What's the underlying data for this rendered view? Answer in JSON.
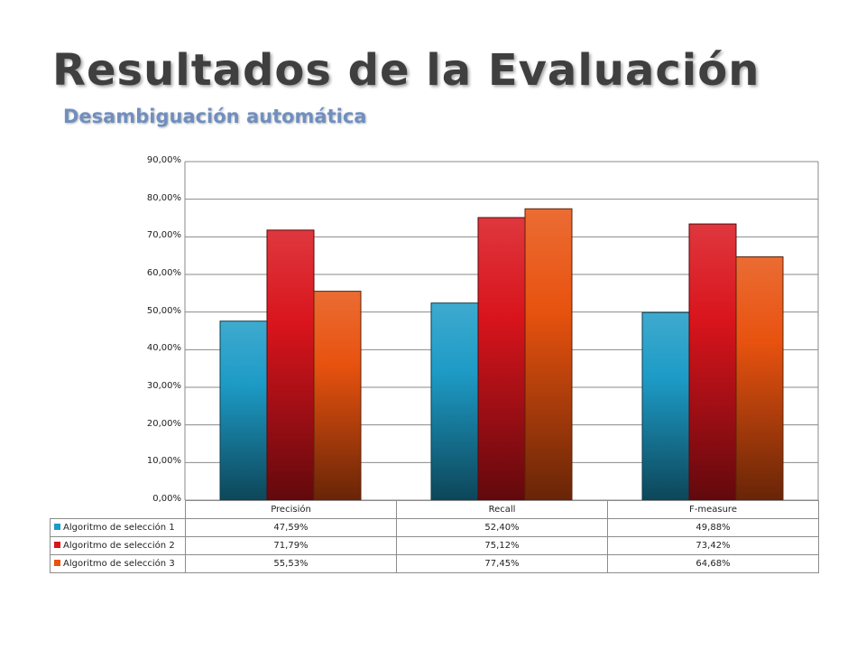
{
  "slide": {
    "title": "Resultados de la Evaluación",
    "subtitle": "Desambiguación automática"
  },
  "chart_data": {
    "type": "bar",
    "categories": [
      "Precisión",
      "Recall",
      "F-measure"
    ],
    "series": [
      {
        "name": "Algoritmo de selección 1",
        "values": [
          47.59,
          52.4,
          49.88
        ],
        "labels": [
          "47,59%",
          "52,40%",
          "49,88%"
        ],
        "color": "#1d9bc6"
      },
      {
        "name": "Algoritmo de selección 2",
        "values": [
          71.79,
          75.12,
          73.42
        ],
        "labels": [
          "71,79%",
          "75,12%",
          "73,42%"
        ],
        "color": "#d9141c"
      },
      {
        "name": "Algoritmo de selección 3",
        "values": [
          55.53,
          77.45,
          64.68
        ],
        "labels": [
          "55,53%",
          "77,45%",
          "64,68%"
        ],
        "color": "#e8520f"
      }
    ],
    "ylim": [
      0,
      90
    ],
    "yticks": [
      "0,00%",
      "10,00%",
      "20,00%",
      "30,00%",
      "40,00%",
      "50,00%",
      "60,00%",
      "70,00%",
      "80,00%",
      "90,00%"
    ],
    "grid": true,
    "legend": "data-table-below"
  }
}
